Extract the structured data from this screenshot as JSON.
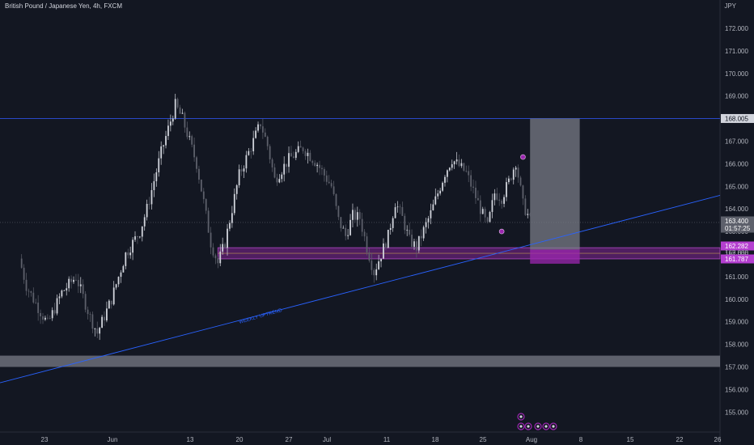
{
  "header": {
    "title": "British Pound / Japanese Yen, 4h, FXCM",
    "unit": "JPY"
  },
  "colors": {
    "up": "#d1d4dc",
    "down": "#5d606b",
    "level_line": "#2948c8",
    "trendline": "#2962ff",
    "zone_purple": "#9c27b0",
    "position_box": "#5d606b",
    "support_box": "#787b86"
  },
  "chart_data": {
    "type": "candlestick",
    "title": "British Pound / Japanese Yen, 4h, FXCM",
    "ylabel": "JPY",
    "ylim": [
      154.5,
      172.5
    ],
    "y_ticks": [
      "155.000",
      "156.000",
      "157.000",
      "158.000",
      "159.000",
      "160.000",
      "161.000",
      "162.000",
      "163.000",
      "164.000",
      "165.000",
      "166.000",
      "167.000",
      "168.000",
      "169.000",
      "170.000",
      "171.000",
      "172.000"
    ],
    "x_ticks": [
      "23",
      "Jun",
      "13",
      "20",
      "27",
      "Jul",
      "11",
      "18",
      "25",
      "Aug",
      "8",
      "15",
      "22",
      "26"
    ],
    "price_path": [
      {
        "date": "2023-05-18",
        "price": 161.8
      },
      {
        "date": "2023-05-19",
        "price": 160.6
      },
      {
        "date": "2023-05-20",
        "price": 160.0
      },
      {
        "date": "2023-05-22",
        "price": 158.9
      },
      {
        "date": "2023-05-24",
        "price": 160.3
      },
      {
        "date": "2023-05-26",
        "price": 161.0
      },
      {
        "date": "2023-05-28",
        "price": 159.2
      },
      {
        "date": "2023-05-29",
        "price": 158.5
      },
      {
        "date": "2023-05-31",
        "price": 160.0
      },
      {
        "date": "2023-06-02",
        "price": 162.0
      },
      {
        "date": "2023-06-04",
        "price": 163.0
      },
      {
        "date": "2023-06-05",
        "price": 164.0
      },
      {
        "date": "2023-06-07",
        "price": 166.5
      },
      {
        "date": "2023-06-09",
        "price": 168.6
      },
      {
        "date": "2023-06-10",
        "price": 168.0
      },
      {
        "date": "2023-06-12",
        "price": 166.0
      },
      {
        "date": "2023-06-13",
        "price": 164.3
      },
      {
        "date": "2023-06-14",
        "price": 162.5
      },
      {
        "date": "2023-06-15",
        "price": 161.6
      },
      {
        "date": "2023-06-16",
        "price": 162.5
      },
      {
        "date": "2023-06-18",
        "price": 165.5
      },
      {
        "date": "2023-06-20",
        "price": 167.0
      },
      {
        "date": "2023-06-21",
        "price": 167.8
      },
      {
        "date": "2023-06-22",
        "price": 166.8
      },
      {
        "date": "2023-06-23",
        "price": 165.3
      },
      {
        "date": "2023-06-25",
        "price": 166.2
      },
      {
        "date": "2023-06-27",
        "price": 166.7
      },
      {
        "date": "2023-06-29",
        "price": 166.0
      },
      {
        "date": "2023-07-01",
        "price": 165.0
      },
      {
        "date": "2023-07-02",
        "price": 163.5
      },
      {
        "date": "2023-07-03",
        "price": 162.8
      },
      {
        "date": "2023-07-04",
        "price": 163.7
      },
      {
        "date": "2023-07-05",
        "price": 163.6
      },
      {
        "date": "2023-07-06",
        "price": 162.3
      },
      {
        "date": "2023-07-07",
        "price": 161.2
      },
      {
        "date": "2023-07-09",
        "price": 162.8
      },
      {
        "date": "2023-07-10",
        "price": 164.3
      },
      {
        "date": "2023-07-11",
        "price": 163.6
      },
      {
        "date": "2023-07-12",
        "price": 162.6
      },
      {
        "date": "2023-07-13",
        "price": 162.3
      },
      {
        "date": "2023-07-15",
        "price": 163.8
      },
      {
        "date": "2023-07-17",
        "price": 165.6
      },
      {
        "date": "2023-07-18",
        "price": 166.2
      },
      {
        "date": "2023-07-20",
        "price": 165.6
      },
      {
        "date": "2023-07-22",
        "price": 164.0
      },
      {
        "date": "2023-07-23",
        "price": 163.2
      },
      {
        "date": "2023-07-24",
        "price": 164.7
      },
      {
        "date": "2023-07-25",
        "price": 164.5
      },
      {
        "date": "2023-07-26",
        "price": 165.2
      },
      {
        "date": "2023-07-27",
        "price": 166.1
      },
      {
        "date": "2023-07-28",
        "price": 164.2
      },
      {
        "date": "2023-07-29",
        "price": 163.5
      }
    ],
    "horizontal_lines": [
      {
        "price": 168.005,
        "label": "168.005"
      }
    ],
    "trendline": {
      "label": "WEEKLY UPTREND",
      "from": {
        "date": "2023-05-18",
        "price": 156.3
      },
      "to": {
        "date": "2023-08-26",
        "price": 164.6
      }
    },
    "zones": [
      {
        "name": "purple-zone",
        "from": "2023-06-15",
        "to": "2023-08-26",
        "top": 162.282,
        "bottom": 161.787
      },
      {
        "name": "support-zone",
        "from": "2023-05-18",
        "to": "2023-08-26",
        "top": 157.5,
        "bottom": 157.0
      }
    ],
    "position_box": {
      "from": "2023-07-29",
      "to": "2023-08-05",
      "top": 168.005,
      "bottom": 162.2,
      "stop_bottom": 161.787
    },
    "markers": [
      {
        "date": "2023-07-25",
        "price": 163.0,
        "symbol": "circle"
      },
      {
        "date": "2023-07-28",
        "price": 166.3,
        "symbol": "circle"
      }
    ],
    "price_tags": [
      {
        "price": 168.005,
        "label": "168.005",
        "style": "level"
      },
      {
        "price": 163.4,
        "label": "163.400",
        "style": "current"
      },
      {
        "price": 163.2,
        "label": "01:57:25",
        "style": "countdown"
      },
      {
        "price": 162.282,
        "label": "162.282",
        "style": "zone"
      },
      {
        "price": 162.0,
        "label": "162.000",
        "style": "plain"
      },
      {
        "price": 161.787,
        "label": "161.787",
        "style": "zone"
      }
    ]
  }
}
